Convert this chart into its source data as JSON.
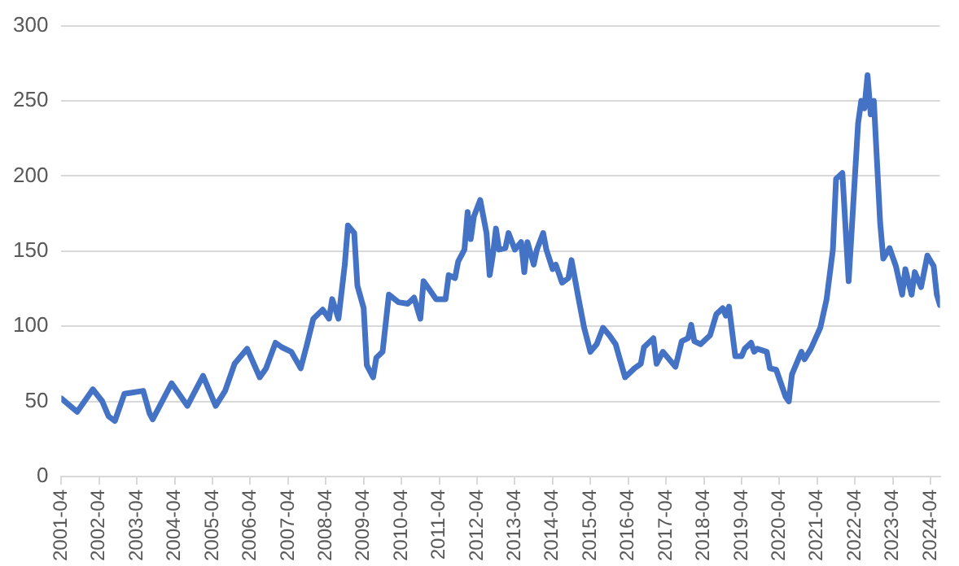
{
  "chart_data": {
    "type": "line",
    "x": [
      "2001-04",
      "2001-09",
      "2002-02",
      "2002-05",
      "2002-07",
      "2002-09",
      "2002-12",
      "2003-06",
      "2003-08",
      "2003-09",
      "2004-03",
      "2004-08",
      "2005-01",
      "2005-05",
      "2005-08",
      "2005-11",
      "2006-03",
      "2006-07",
      "2006-09",
      "2006-12",
      "2007-02",
      "2007-05",
      "2007-08",
      "2007-10",
      "2007-12",
      "2008-03",
      "2008-05",
      "2008-06",
      "2008-08",
      "2008-10",
      "2008-11",
      "2009-01",
      "2009-02",
      "2009-04",
      "2009-05",
      "2009-07",
      "2009-08",
      "2009-10",
      "2009-12",
      "2010-03",
      "2010-06",
      "2010-08",
      "2010-10",
      "2010-11",
      "2011-01",
      "2011-03",
      "2011-06",
      "2011-07",
      "2011-09",
      "2011-10",
      "2011-12",
      "2012-01",
      "2012-02",
      "2012-03",
      "2012-05",
      "2012-07",
      "2012-08",
      "2012-09",
      "2012-10",
      "2012-11",
      "2013-01",
      "2013-02",
      "2013-04",
      "2013-06",
      "2013-07",
      "2013-08",
      "2013-10",
      "2013-11",
      "2014-01",
      "2014-02",
      "2014-04",
      "2014-05",
      "2014-07",
      "2014-09",
      "2014-10",
      "2014-12",
      "2015-02",
      "2015-04",
      "2015-06",
      "2015-08",
      "2015-10",
      "2015-12",
      "2016-03",
      "2016-06",
      "2016-08",
      "2016-09",
      "2016-12",
      "2017-01",
      "2017-03",
      "2017-07",
      "2017-09",
      "2017-11",
      "2017-12",
      "2018-01",
      "2018-03",
      "2018-06",
      "2018-08",
      "2018-10",
      "2018-11",
      "2018-12",
      "2019-02",
      "2019-04",
      "2019-05",
      "2019-07",
      "2019-08",
      "2019-09",
      "2019-12",
      "2020-01",
      "2020-03",
      "2020-06",
      "2020-07",
      "2020-08",
      "2020-11",
      "2020-12",
      "2021-02",
      "2021-05",
      "2021-07",
      "2021-09",
      "2021-10",
      "2021-12",
      "2022-02",
      "2022-05",
      "2022-06",
      "2022-07",
      "2022-08",
      "2022-09",
      "2022-10",
      "2022-12",
      "2023-01",
      "2023-03",
      "2023-05",
      "2023-07",
      "2023-08",
      "2023-10",
      "2023-11",
      "2024-01",
      "2024-03",
      "2024-05",
      "2024-06",
      "2024-07"
    ],
    "series": [
      {
        "color": "#4472c4",
        "values": [
          52,
          43,
          58,
          50,
          40,
          37,
          55,
          57,
          42,
          38,
          62,
          47,
          67,
          47,
          57,
          75,
          85,
          66,
          72,
          89,
          86,
          83,
          72,
          88,
          105,
          111,
          105,
          118,
          105,
          141,
          167,
          162,
          127,
          112,
          74,
          66,
          79,
          83,
          121,
          116,
          115,
          119,
          105,
          130,
          124,
          118,
          118,
          134,
          132,
          143,
          151,
          176,
          158,
          173,
          184,
          162,
          134,
          147,
          165,
          151,
          152,
          162,
          151,
          156,
          136,
          156,
          141,
          151,
          162,
          151,
          138,
          141,
          129,
          132,
          144,
          121,
          99,
          83,
          88,
          99,
          94,
          88,
          66,
          72,
          75,
          86,
          92,
          75,
          83,
          73,
          90,
          92,
          101,
          90,
          88,
          94,
          108,
          112,
          107,
          113,
          80,
          80,
          85,
          89,
          83,
          85,
          83,
          72,
          71,
          53,
          50,
          68,
          83,
          78,
          85,
          99,
          118,
          151,
          198,
          202,
          130,
          235,
          250,
          245,
          267,
          241,
          250,
          169,
          145,
          152,
          140,
          121,
          138,
          121,
          136,
          126,
          147,
          140,
          121,
          114
        ]
      }
    ],
    "xlim": [
      "2001-04",
      "2024-07"
    ],
    "xticks": [
      "2001-04",
      "2002-04",
      "2003-04",
      "2004-04",
      "2005-04",
      "2006-04",
      "2007-04",
      "2008-04",
      "2009-04",
      "2010-04",
      "2011-04",
      "2012-04",
      "2013-04",
      "2014-04",
      "2015-04",
      "2016-04",
      "2017-04",
      "2018-04",
      "2019-04",
      "2020-04",
      "2021-04",
      "2022-04",
      "2023-04",
      "2024-04"
    ],
    "ylim": [
      0,
      300
    ],
    "yticks": [
      0,
      50,
      100,
      150,
      200,
      250,
      300
    ],
    "grid": "y",
    "legend": false,
    "marker": "none",
    "line_style": "solid"
  }
}
